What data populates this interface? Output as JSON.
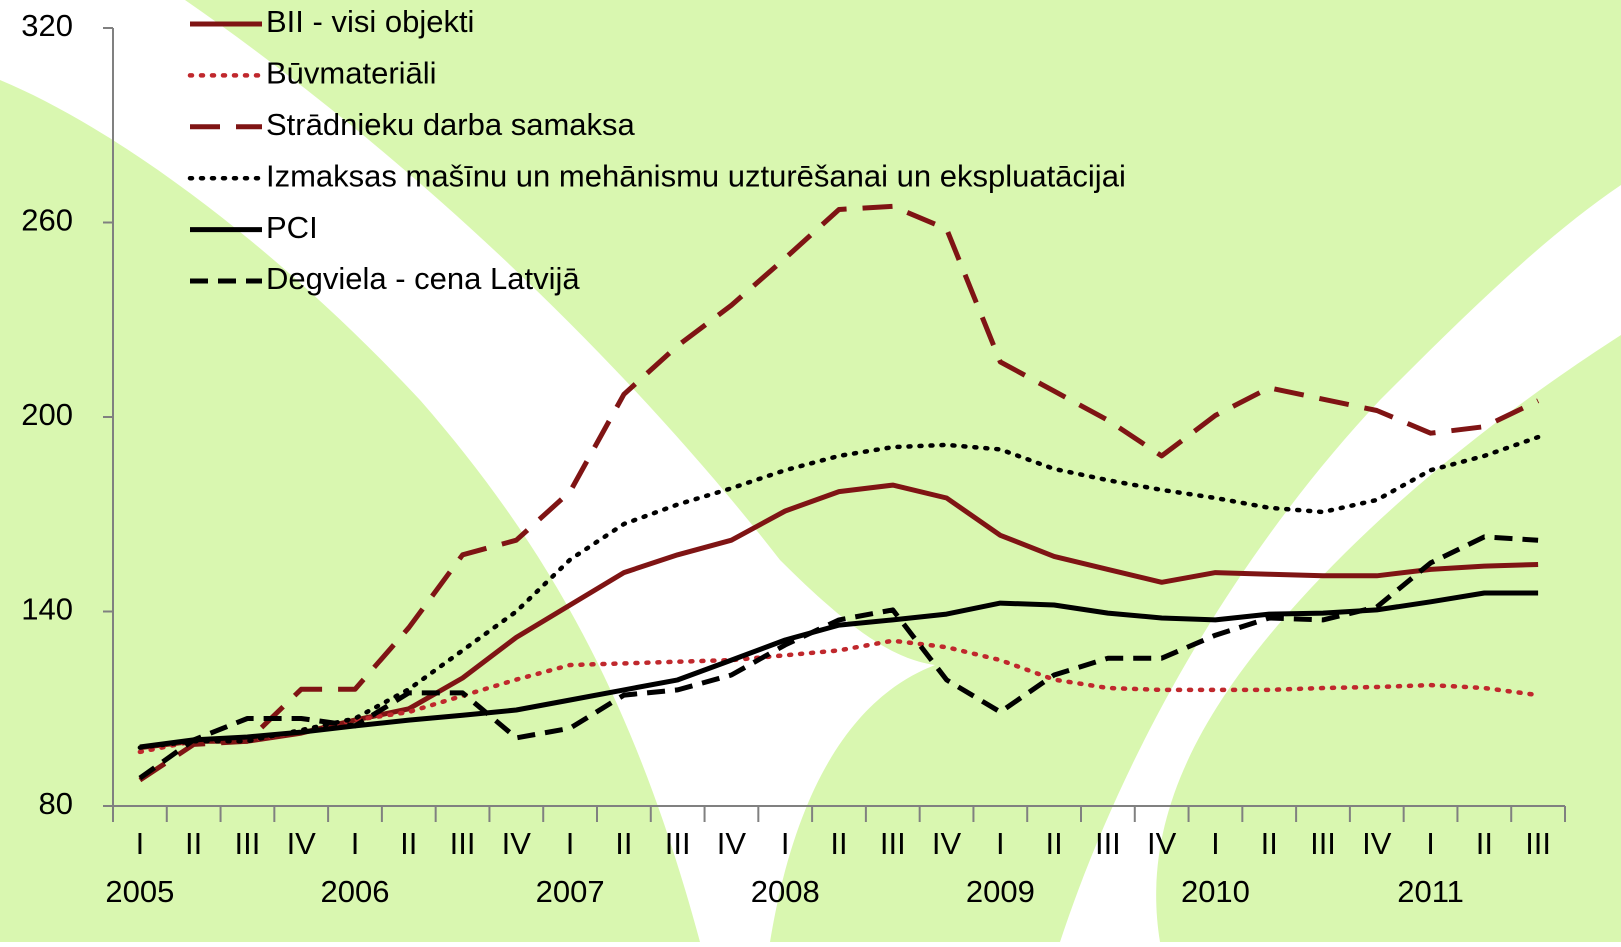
{
  "chart_data": {
    "type": "line",
    "categories": [
      "I",
      "II",
      "III",
      "IV",
      "I",
      "II",
      "III",
      "IV",
      "I",
      "II",
      "III",
      "IV",
      "I",
      "II",
      "III",
      "IV",
      "I",
      "II",
      "III",
      "IV",
      "I",
      "II",
      "III",
      "IV",
      "I",
      "II",
      "III"
    ],
    "years": [
      "2005",
      "2006",
      "2007",
      "2008",
      "2009",
      "2010",
      "2011"
    ],
    "ylim": [
      80,
      320
    ],
    "yticks": [
      80,
      140,
      200,
      260,
      320
    ],
    "series": [
      {
        "name": "BII - visi objekti",
        "color": "#7f1414",
        "style": "solid",
        "values": [
          98,
          100,
          100,
          102.5,
          106.5,
          110,
          119.5,
          132,
          142,
          152,
          157.5,
          162,
          171,
          177,
          179,
          175,
          163.5,
          157,
          153,
          149,
          152,
          151.5,
          151,
          151,
          153,
          154,
          154.5
        ]
      },
      {
        "name": "Būvmateriāli",
        "color": "#c0282d",
        "style": "dotted",
        "values": [
          96.7,
          100,
          100,
          103,
          106.5,
          109,
          114,
          119,
          123.5,
          124,
          124.5,
          125,
          126.5,
          128,
          131,
          129,
          125,
          119,
          116.4,
          115.8,
          115.8,
          115.8,
          116.4,
          116.7,
          117.3,
          116.4,
          114.2
        ]
      },
      {
        "name": "Strādnieku darba samaksa",
        "color": "#7f1414",
        "style": "dashed",
        "values": [
          88,
          99,
          100,
          116,
          116,
          135,
          157.5,
          162,
          177,
          207,
          222,
          234.5,
          249,
          264,
          265,
          258,
          217,
          208,
          199,
          188,
          200.5,
          209,
          205.5,
          202,
          195,
          197,
          205
        ]
      },
      {
        "name": "Izmaksas mašīnu un mehānismu uzturēšanai un ekspluatācijai",
        "color": "#000000",
        "style": "dotted",
        "values": [
          98,
          100,
          100,
          103.4,
          107,
          116,
          128,
          140,
          156,
          167,
          173,
          178,
          183.6,
          188,
          190.7,
          191.4,
          190,
          184,
          180.5,
          177.5,
          175,
          172,
          170.7,
          174.4,
          183.6,
          188,
          193.8
        ]
      },
      {
        "name": "PCI",
        "color": "#000000",
        "style": "solid",
        "values": [
          98.2,
          100.4,
          101.3,
          102.8,
          104.7,
          106.5,
          108,
          109.6,
          112.7,
          115.8,
          118.9,
          125,
          131.2,
          135.8,
          137.4,
          139.2,
          142.6,
          142,
          139.5,
          138,
          137.4,
          139.2,
          139.5,
          140.5,
          143,
          145.7,
          145.7
        ]
      },
      {
        "name": "Degviela - cena Latvijā",
        "color": "#000000",
        "style": "short-dash",
        "values": [
          88.6,
          100.4,
          107,
          107,
          104.7,
          114.9,
          114.9,
          101,
          104,
          114.2,
          115.8,
          120.4,
          129.7,
          137.4,
          140.5,
          118.9,
          109,
          120.4,
          125.6,
          125.6,
          132.7,
          138,
          137.4,
          141.4,
          155,
          163,
          162
        ]
      }
    ]
  }
}
